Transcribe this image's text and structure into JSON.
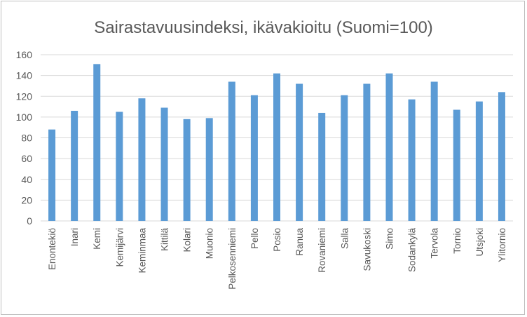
{
  "chart_data": {
    "type": "bar",
    "title": "Sairastavuusindeksi, ikävakioitu (Suomi=100)",
    "xlabel": "",
    "ylabel": "",
    "ylim": [
      0,
      160
    ],
    "yticks": [
      0,
      20,
      40,
      60,
      80,
      100,
      120,
      140,
      160
    ],
    "grid": true,
    "legend": "none",
    "bar_color": "#5b9bd5",
    "categories": [
      "Enontekiö",
      "Inari",
      "Kemi",
      "Kemijärvi",
      "Keminmaa",
      "Kittilä",
      "Kolari",
      "Muonio",
      "Pelkosenniemi",
      "Pello",
      "Posio",
      "Ranua",
      "Rovaniemi",
      "Salla",
      "Savukoski",
      "Simo",
      "Sodankylä",
      "Tervola",
      "Tornio",
      "Utsjoki",
      "Ylitornio"
    ],
    "values": [
      88,
      106,
      151,
      105,
      118,
      109,
      98,
      99,
      134,
      121,
      142,
      132,
      104,
      121,
      132,
      142,
      117,
      134,
      107,
      115,
      124
    ]
  }
}
